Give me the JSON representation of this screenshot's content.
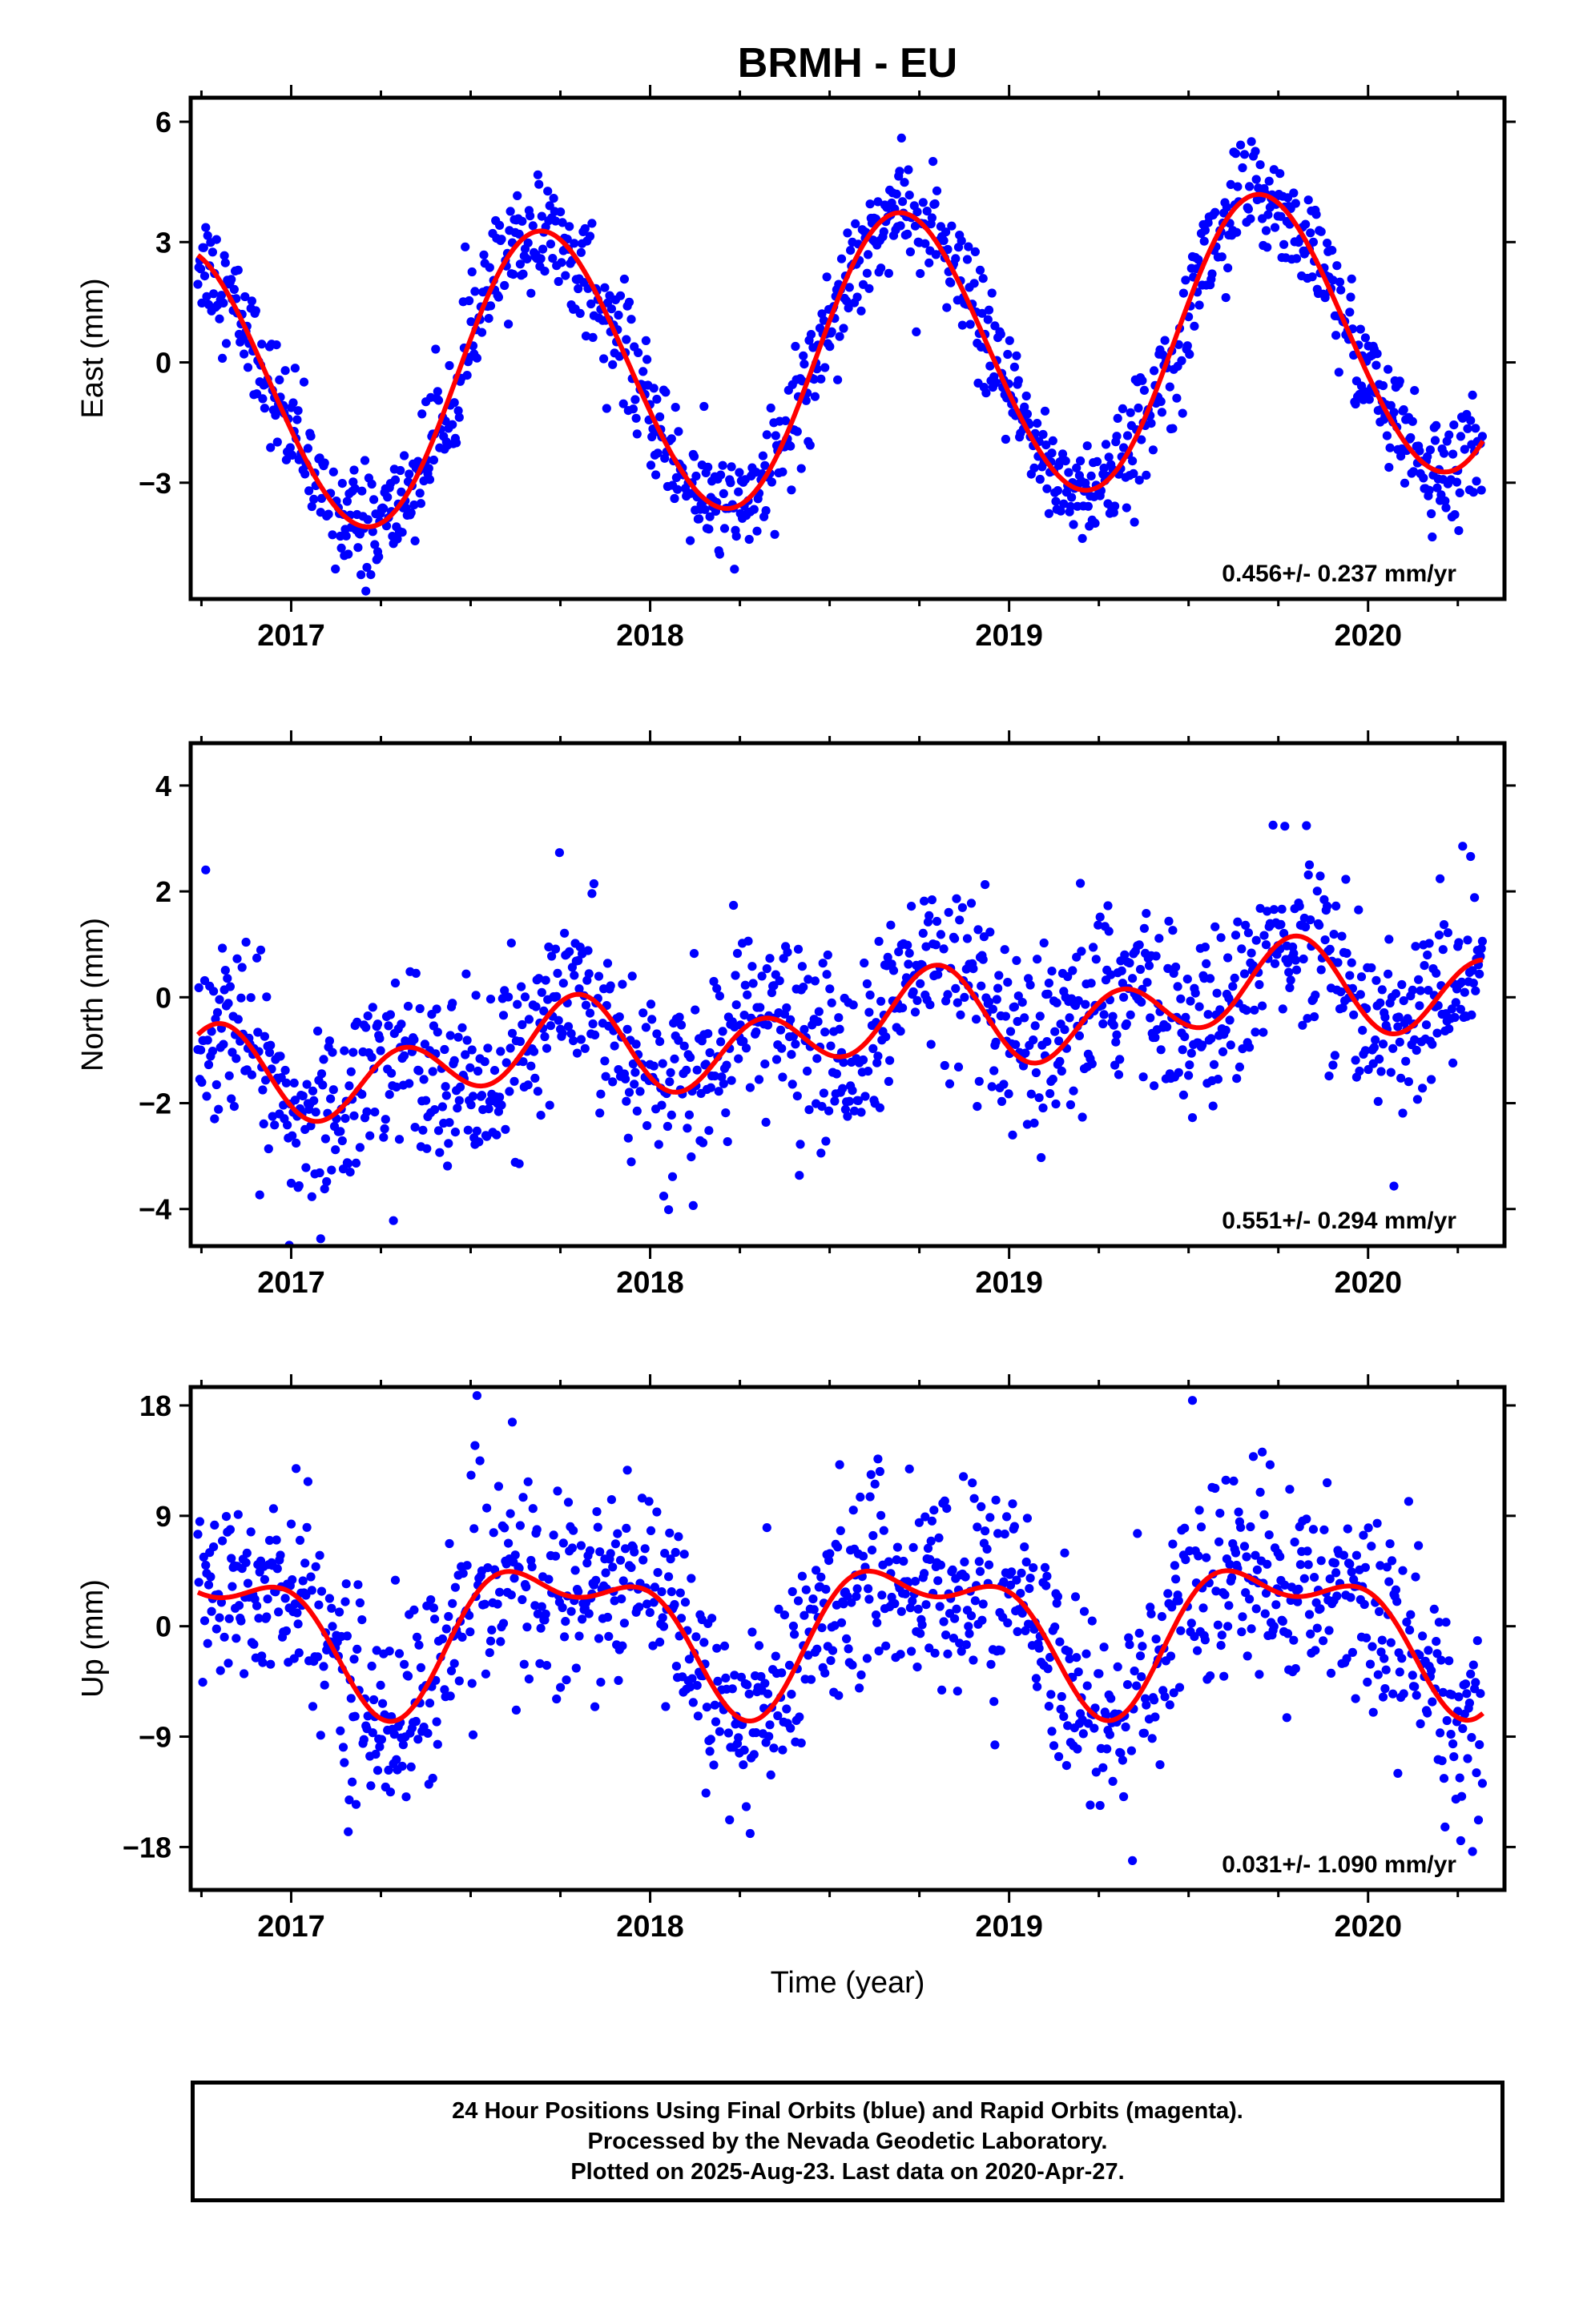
{
  "title": "BRMH - EU",
  "chart_data": [
    {
      "type": "scatter",
      "panel": "east",
      "ylabel": "East (mm)",
      "xlabel": "",
      "xlim": [
        2016.72,
        2020.38
      ],
      "ylim": [
        -5.9,
        6.6
      ],
      "yticks": [
        -3,
        0,
        3,
        6
      ],
      "xticks": [
        2017,
        2018,
        2019,
        2020
      ],
      "rate_label": "0.456+/- 0.237 mm/yr",
      "model": {
        "offset": 0.0,
        "rate": 0.456,
        "annual_cos": -1.02,
        "annual_sin": -3.42,
        "semiannual_cos": 0.02,
        "semiannual_sin": 0.15
      },
      "scatter_sd": 0.7,
      "series": [
        {
          "values_note": "",
          "color": "#0000ff"
        }
      ],
      "fit_color": "#ff0000"
    },
    {
      "type": "scatter",
      "panel": "north",
      "ylabel": "North (mm)",
      "xlabel": "",
      "xlim": [
        2016.72,
        2020.38
      ],
      "ylim": [
        -4.7,
        4.8
      ],
      "yticks": [
        -4,
        -2,
        0,
        2,
        4
      ],
      "xticks": [
        2017,
        2018,
        2019,
        2020
      ],
      "rate_label": "0.551+/- 0.294 mm/yr",
      "model": {
        "offset": -0.63,
        "rate": 0.551,
        "annual_cos": -0.07,
        "annual_sin": -0.42,
        "semiannual_cos": -0.53,
        "semiannual_sin": -0.45
      },
      "scatter_sd": 0.85,
      "series": [
        {
          "color": "#0000ff"
        }
      ],
      "fit_color": "#ff0000"
    },
    {
      "type": "scatter",
      "panel": "up",
      "ylabel": "Up (mm)",
      "xlabel": "Time (year)",
      "xlim": [
        2016.72,
        2020.38
      ],
      "ylim": [
        -21.5,
        19.5
      ],
      "yticks": [
        -18,
        -9,
        0,
        9,
        18
      ],
      "xticks": [
        2017,
        2018,
        2019,
        2020
      ],
      "rate_label": "0.031+/- 1.090 mm/yr",
      "model": {
        "offset": 0.0,
        "rate": 0.031,
        "annual_cos": 0.38,
        "annual_sin": -5.1,
        "semiannual_cos": 2.4,
        "semiannual_sin": 1.1
      },
      "scatter_sd": 4.2,
      "series": [
        {
          "color": "#0000ff"
        }
      ],
      "fit_color": "#ff0000"
    }
  ],
  "footer": {
    "line1": "24 Hour Positions Using Final Orbits (blue) and Rapid Orbits (magenta).",
    "line2": "Processed by the Nevada Geodetic Laboratory.",
    "line3": "Plotted on 2025-Aug-23. Last data on 2020-Apr-27."
  }
}
